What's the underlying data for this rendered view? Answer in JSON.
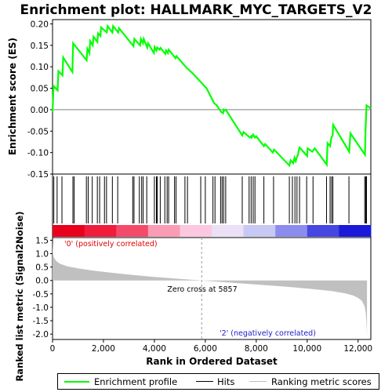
{
  "chart_data": {
    "type": "line",
    "title": "Enrichment plot: HALLMARK_MYC_TARGETS_V2",
    "top_panel": {
      "ylabel": "Enrichment score (ES)",
      "ylim": [
        -0.15,
        0.21
      ],
      "yticks": [
        "0.20",
        "0.15",
        "0.10",
        "0.05",
        "0.00",
        "-0.05",
        "-0.10",
        "-0.15"
      ],
      "ytick_values": [
        0.2,
        0.15,
        0.1,
        0.05,
        0.0,
        -0.05,
        -0.1,
        -0.15
      ],
      "series": [
        {
          "name": "Enrichment profile",
          "color": "#00ff00",
          "x": [
            0,
            40,
            200,
            230,
            390,
            420,
            780,
            810,
            1340,
            1370,
            1450,
            1480,
            1580,
            1610,
            1760,
            1790,
            1880,
            1910,
            2130,
            2160,
            2350,
            2380,
            2580,
            2610,
            3180,
            3210,
            3440,
            3470,
            3550,
            3580,
            3720,
            3750,
            3980,
            4010,
            4080,
            4110,
            4210,
            4240,
            4430,
            4460,
            4530,
            4560,
            4830,
            4860,
            5230,
            5260,
            5500,
            6050,
            6350,
            6450,
            6620,
            6700,
            6720,
            6760,
            6800,
            7450,
            7500,
            7750,
            7800,
            7820,
            7880,
            7950,
            8000,
            8300,
            8350,
            8650,
            8700,
            9300,
            9350,
            9450,
            9500,
            9550,
            9600,
            9640,
            9680,
            9700,
            10000,
            10020,
            10200,
            10300,
            10770,
            10800,
            10900,
            10950,
            11000,
            11020,
            11650,
            11700,
            12270,
            12290,
            12330,
            12500
          ],
          "y": [
            -0.005,
            0.055,
            0.045,
            0.09,
            0.08,
            0.122,
            0.088,
            0.155,
            0.115,
            0.142,
            0.132,
            0.16,
            0.15,
            0.17,
            0.158,
            0.178,
            0.172,
            0.192,
            0.18,
            0.195,
            0.18,
            0.195,
            0.18,
            0.19,
            0.148,
            0.165,
            0.15,
            0.165,
            0.155,
            0.165,
            0.145,
            0.155,
            0.132,
            0.146,
            0.138,
            0.145,
            0.14,
            0.144,
            0.13,
            0.138,
            0.132,
            0.14,
            0.12,
            0.125,
            0.1,
            0.098,
            0.085,
            0.05,
            0.015,
            0.01,
            -0.005,
            -0.008,
            0.0,
            -0.002,
            0.0,
            -0.06,
            -0.052,
            -0.065,
            -0.062,
            -0.065,
            -0.058,
            -0.065,
            -0.062,
            -0.085,
            -0.08,
            -0.1,
            -0.093,
            -0.13,
            -0.118,
            -0.125,
            -0.112,
            -0.12,
            -0.11,
            -0.105,
            -0.092,
            -0.088,
            -0.108,
            -0.09,
            -0.098,
            -0.09,
            -0.128,
            -0.078,
            -0.085,
            -0.065,
            -0.06,
            -0.035,
            -0.098,
            -0.055,
            -0.105,
            -0.05,
            0.01,
            0.003
          ]
        }
      ]
    },
    "hits_panel": {
      "hit_positions": [
        50,
        180,
        370,
        800,
        850,
        1330,
        1400,
        1560,
        1760,
        1850,
        2040,
        2120,
        2350,
        2560,
        3150,
        3200,
        3410,
        3500,
        3560,
        3700,
        4000,
        4080,
        4110,
        4230,
        4410,
        4500,
        4560,
        4790,
        4850,
        5200,
        5300,
        5820,
        6000,
        6300,
        6380,
        6600,
        6660,
        6720,
        6800,
        7450,
        7720,
        7800,
        7880,
        7950,
        8300,
        8680,
        9300,
        9420,
        9520,
        9600,
        9700,
        9980,
        10230,
        10760,
        10900,
        10960,
        11010,
        11640,
        12260,
        12300,
        12330
      ],
      "color_bar": [
        "#e8001c",
        "#f01c3c",
        "#f44a6a",
        "#fa9cb6",
        "#fcc8e0",
        "#ece0f6",
        "#c8c8f4",
        "#8c8cee",
        "#4646e0",
        "#1a1ad8"
      ],
      "label_positive": "'0' (positively correlated)",
      "label_negative": "'2' (negatively correlated)"
    },
    "metric_panel": {
      "ylabel": "Ranked list metric (Signal2Noise)",
      "xlabel": "Rank in Ordered Dataset",
      "ylim": [
        -2.2,
        1.6
      ],
      "yticks": [
        "1.5",
        "1.0",
        "0.5",
        "0.0",
        "-0.5",
        "-1.0",
        "-1.5",
        "-2.0"
      ],
      "ytick_values": [
        1.5,
        1.0,
        0.5,
        0.0,
        -0.5,
        -1.0,
        -1.5,
        -2.0
      ],
      "xlim": [
        0,
        12500
      ],
      "xticks": [
        "0",
        "2,000",
        "4,000",
        "6,000",
        "8,000",
        "10,000",
        "12,000"
      ],
      "xtick_values": [
        0,
        2000,
        4000,
        6000,
        8000,
        10000,
        12000
      ],
      "zero_cross_label": "Zero cross at 5857",
      "zero_cross": 5857,
      "metric_curve": {
        "x": [
          0,
          20,
          60,
          150,
          300,
          600,
          1000,
          1500,
          2000,
          3000,
          4000,
          5000,
          5857,
          7000,
          8000,
          9000,
          10000,
          11000,
          11500,
          11800,
          12000,
          12150,
          12250,
          12300,
          12330,
          12350
        ],
        "y": [
          1.45,
          1.0,
          0.85,
          0.72,
          0.62,
          0.52,
          0.45,
          0.38,
          0.32,
          0.22,
          0.13,
          0.06,
          0.0,
          -0.08,
          -0.15,
          -0.22,
          -0.3,
          -0.4,
          -0.48,
          -0.56,
          -0.65,
          -0.76,
          -0.95,
          -1.2,
          -1.6,
          -2.1
        ]
      }
    }
  },
  "legend": {
    "items": [
      {
        "label": "Enrichment profile",
        "color": "#00ff00"
      },
      {
        "label": "Hits",
        "color": "#000000"
      },
      {
        "label": "Ranking metric scores",
        "color": "#c0c0c0"
      }
    ]
  }
}
